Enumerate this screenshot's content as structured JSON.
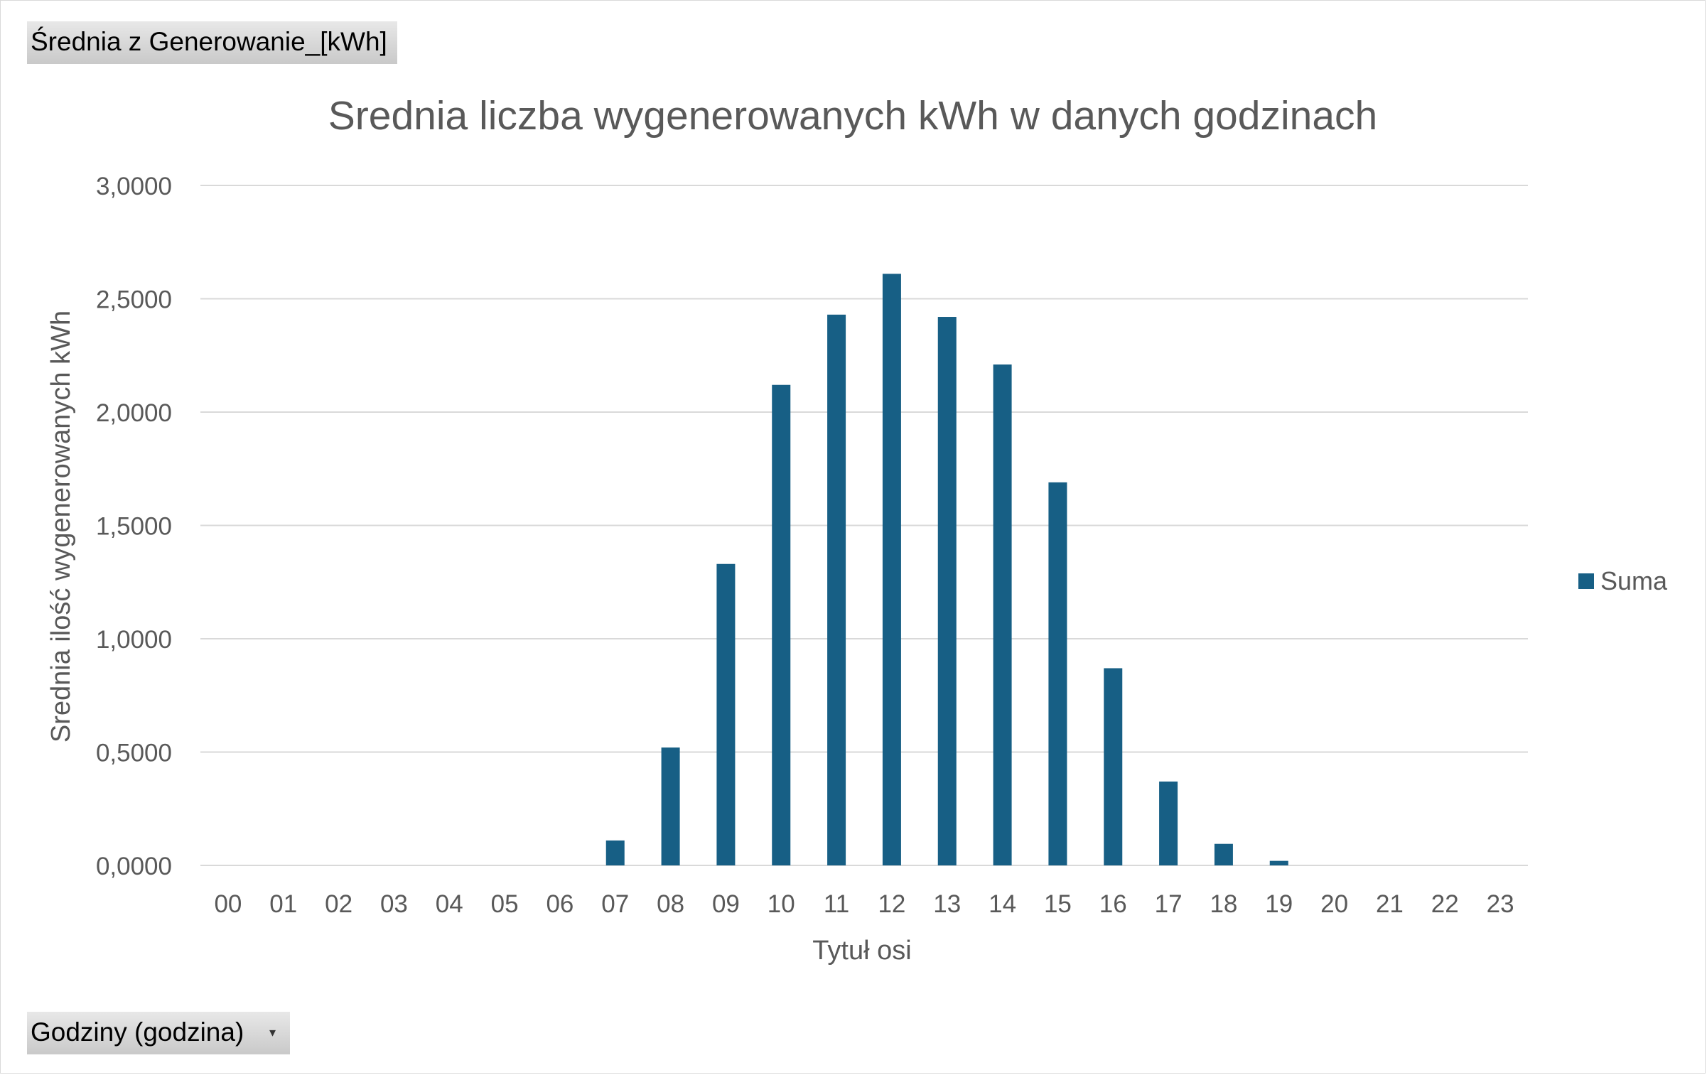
{
  "pivot": {
    "value_field": "Średnia z Generowanie_[kWh]",
    "axis_field": "Godziny (godzina)"
  },
  "colors": {
    "bar": "#175f85",
    "grid": "#d9d9d9",
    "text": "#595959"
  },
  "chart_data": {
    "type": "bar",
    "title": "Srednia liczba wygenerowanych kWh w danych godzinach",
    "xlabel": "Tytuł osi",
    "ylabel": "Srednia ilość wygenerowanych kWh",
    "ylim": [
      0,
      3
    ],
    "yticks": [
      "0,0000",
      "0,5000",
      "1,0000",
      "1,5000",
      "2,0000",
      "2,5000",
      "3,0000"
    ],
    "grid": true,
    "legend_position": "right",
    "categories": [
      "00",
      "01",
      "02",
      "03",
      "04",
      "05",
      "06",
      "07",
      "08",
      "09",
      "10",
      "11",
      "12",
      "13",
      "14",
      "15",
      "16",
      "17",
      "18",
      "19",
      "20",
      "21",
      "22",
      "23"
    ],
    "series": [
      {
        "name": "Suma",
        "values": [
          0,
          0,
          0,
          0,
          0,
          0,
          0,
          0.11,
          0.52,
          1.33,
          2.12,
          2.43,
          2.61,
          2.42,
          2.21,
          1.69,
          0.87,
          0.37,
          0.095,
          0.02,
          0,
          0,
          0,
          0
        ]
      }
    ]
  }
}
